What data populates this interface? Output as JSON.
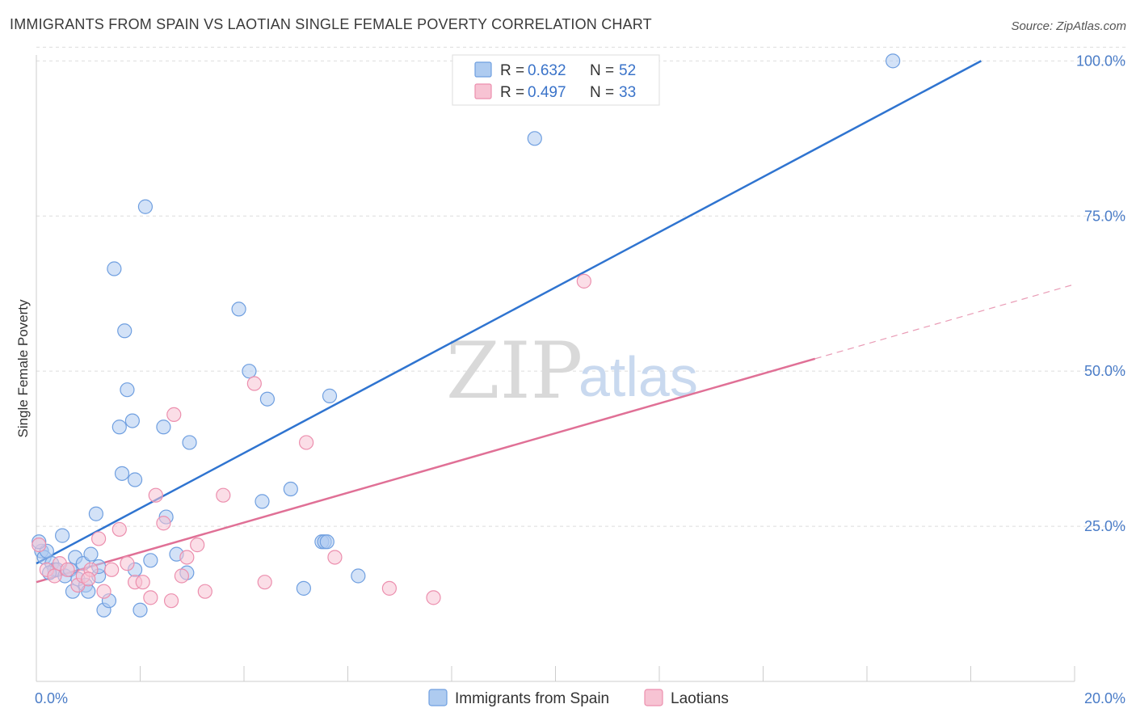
{
  "title": "IMMIGRANTS FROM SPAIN VS LAOTIAN SINGLE FEMALE POVERTY CORRELATION CHART",
  "source": "Source: ZipAtlas.com",
  "watermark": {
    "zip": "ZIP",
    "atlas": "atlas"
  },
  "colors": {
    "blue_fill": "#aecbf0",
    "blue_stroke": "#6f9fe0",
    "blue_line": "#2f74d0",
    "pink_fill": "#f7c3d3",
    "pink_stroke": "#ec8fae",
    "pink_line": "#e07096",
    "grid": "#dddddd",
    "tick_label": "#4a7cc7"
  },
  "legend": {
    "rows": [
      {
        "r_label": "R = ",
        "r_value": "0.632",
        "n_label": "N = ",
        "n_value": "52",
        "series": "blue"
      },
      {
        "r_label": "R = ",
        "r_value": "0.497",
        "n_label": "N = ",
        "n_value": "33",
        "series": "pink"
      }
    ]
  },
  "chart_data": {
    "type": "scatter",
    "title": "IMMIGRANTS FROM SPAIN VS LAOTIAN SINGLE FEMALE POVERTY CORRELATION CHART",
    "xlabel": "",
    "ylabel": "Single Female Poverty",
    "xlim": [
      0,
      20
    ],
    "ylim": [
      0,
      102
    ],
    "x_tick_labels": [
      {
        "value": 0,
        "label": "0.0%"
      },
      {
        "value": 20,
        "label": "20.0%"
      }
    ],
    "y_tick_labels": [
      {
        "value": 25,
        "label": "25.0%"
      },
      {
        "value": 50,
        "label": "50.0%"
      },
      {
        "value": 75,
        "label": "75.0%"
      },
      {
        "value": 100,
        "label": "100.0%"
      }
    ],
    "series": [
      {
        "name": "Immigrants from Spain",
        "color": "blue",
        "R": 0.632,
        "N": 52,
        "trend": {
          "x0": 0,
          "y0": 19,
          "x1": 18.2,
          "y1": 100,
          "dashed_to": null
        },
        "points": [
          [
            0.1,
            21
          ],
          [
            0.15,
            20
          ],
          [
            0.2,
            21
          ],
          [
            0.3,
            19
          ],
          [
            0.35,
            18
          ],
          [
            0.4,
            18
          ],
          [
            0.5,
            23.5
          ],
          [
            0.55,
            17
          ],
          [
            0.65,
            18
          ],
          [
            0.7,
            14.5
          ],
          [
            0.75,
            20
          ],
          [
            0.8,
            16.5
          ],
          [
            0.9,
            19
          ],
          [
            0.95,
            15.5
          ],
          [
            1.0,
            14.5
          ],
          [
            1.05,
            20.5
          ],
          [
            1.15,
            27
          ],
          [
            1.2,
            17
          ],
          [
            1.3,
            11.5
          ],
          [
            1.4,
            13
          ],
          [
            1.5,
            66.5
          ],
          [
            1.6,
            41
          ],
          [
            1.65,
            33.5
          ],
          [
            1.7,
            56.5
          ],
          [
            1.75,
            47
          ],
          [
            1.85,
            42
          ],
          [
            1.9,
            32.5
          ],
          [
            2.0,
            11.5
          ],
          [
            2.1,
            76.5
          ],
          [
            2.2,
            19.5
          ],
          [
            2.45,
            41
          ],
          [
            2.5,
            26.5
          ],
          [
            2.7,
            20.5
          ],
          [
            2.9,
            17.5
          ],
          [
            2.95,
            38.5
          ],
          [
            3.9,
            60
          ],
          [
            4.1,
            50
          ],
          [
            4.35,
            29
          ],
          [
            4.45,
            45.5
          ],
          [
            4.9,
            31
          ],
          [
            5.15,
            15
          ],
          [
            5.5,
            22.5
          ],
          [
            5.55,
            22.5
          ],
          [
            5.6,
            22.5
          ],
          [
            5.65,
            46
          ],
          [
            6.2,
            17
          ],
          [
            9.6,
            87.5
          ],
          [
            16.5,
            100
          ],
          [
            0.05,
            22.5
          ],
          [
            1.9,
            18
          ],
          [
            1.2,
            18.5
          ],
          [
            0.25,
            17.5
          ]
        ]
      },
      {
        "name": "Laotians",
        "color": "pink",
        "R": 0.497,
        "N": 33,
        "trend": {
          "x0": 0,
          "y0": 16,
          "x1": 15,
          "y1": 52,
          "dashed_to": {
            "x": 20,
            "y": 64
          }
        },
        "points": [
          [
            0.05,
            22
          ],
          [
            0.2,
            18
          ],
          [
            0.35,
            17
          ],
          [
            0.45,
            19
          ],
          [
            0.6,
            18
          ],
          [
            0.8,
            15.5
          ],
          [
            0.9,
            17
          ],
          [
            1.05,
            18
          ],
          [
            1.2,
            23
          ],
          [
            1.3,
            14.5
          ],
          [
            1.45,
            18
          ],
          [
            1.6,
            24.5
          ],
          [
            1.75,
            19
          ],
          [
            1.9,
            16
          ],
          [
            2.05,
            16
          ],
          [
            2.2,
            13.5
          ],
          [
            2.3,
            30
          ],
          [
            2.45,
            25.5
          ],
          [
            2.6,
            13
          ],
          [
            2.65,
            43
          ],
          [
            2.8,
            17
          ],
          [
            2.9,
            20
          ],
          [
            3.1,
            22
          ],
          [
            3.25,
            14.5
          ],
          [
            3.6,
            30
          ],
          [
            4.2,
            48
          ],
          [
            4.4,
            16
          ],
          [
            5.2,
            38.5
          ],
          [
            5.75,
            20
          ],
          [
            6.8,
            15
          ],
          [
            7.65,
            13.5
          ],
          [
            10.55,
            64.5
          ],
          [
            1.0,
            16.5
          ]
        ]
      }
    ],
    "legend_position": "top-center",
    "grid": true
  },
  "bottom_legend": [
    {
      "label": "Immigrants from Spain",
      "series": "blue"
    },
    {
      "label": "Laotians",
      "series": "pink"
    }
  ]
}
